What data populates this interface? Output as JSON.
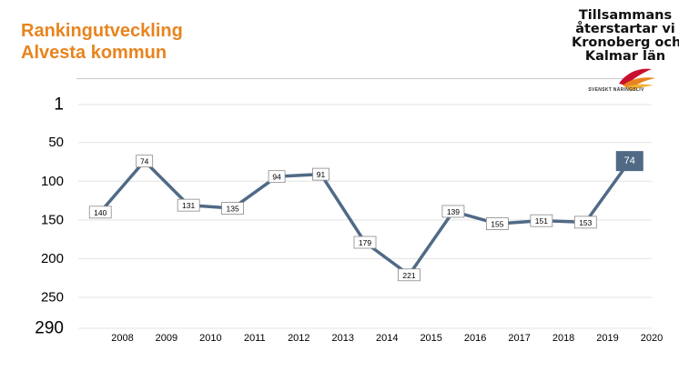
{
  "header": {
    "title_line1": "Rankingutveckling",
    "title_line2": "Alvesta kommun"
  },
  "logo": {
    "lines": [
      "Tillsammans",
      "återstartar vi",
      "Kronoberg och",
      "Kalmar län"
    ],
    "subtext": "SVENSKT NÄRINGSLIV",
    "accent_colors": [
      "#e8841f",
      "#c8102e",
      "#f2b134"
    ]
  },
  "chart_data": {
    "type": "line",
    "x": [
      2007.5,
      2008.5,
      2009.5,
      2010.5,
      2011.5,
      2012.5,
      2013.5,
      2014.5,
      2015.5,
      2016.5,
      2017.5,
      2018.5,
      2019.5
    ],
    "values": [
      140,
      74,
      131,
      135,
      94,
      91,
      179,
      221,
      139,
      155,
      151,
      153,
      74
    ],
    "data_labels": [
      "140",
      "74",
      "131",
      "135",
      "94",
      "91",
      "179",
      "221",
      "139",
      "155",
      "151",
      "153",
      "74"
    ],
    "x_tick_labels": [
      "2008",
      "2009",
      "2010",
      "2011",
      "2012",
      "2013",
      "2014",
      "2015",
      "2016",
      "2017",
      "2018",
      "2019",
      "2020"
    ],
    "x_ticks": [
      2008,
      2009,
      2010,
      2011,
      2012,
      2013,
      2014,
      2015,
      2016,
      2017,
      2018,
      2019,
      2020
    ],
    "y_tick_labels": [
      "1",
      "50",
      "100",
      "150",
      "200",
      "250",
      "290"
    ],
    "y_ticks": [
      1,
      50,
      100,
      150,
      200,
      250,
      290
    ],
    "ylim": [
      1,
      290
    ],
    "y_inverted": true,
    "grid": true,
    "line_color": "#506a86",
    "highlight_last": true,
    "highlight_color": "#506a86",
    "title": "",
    "xlabel": "",
    "ylabel": ""
  }
}
